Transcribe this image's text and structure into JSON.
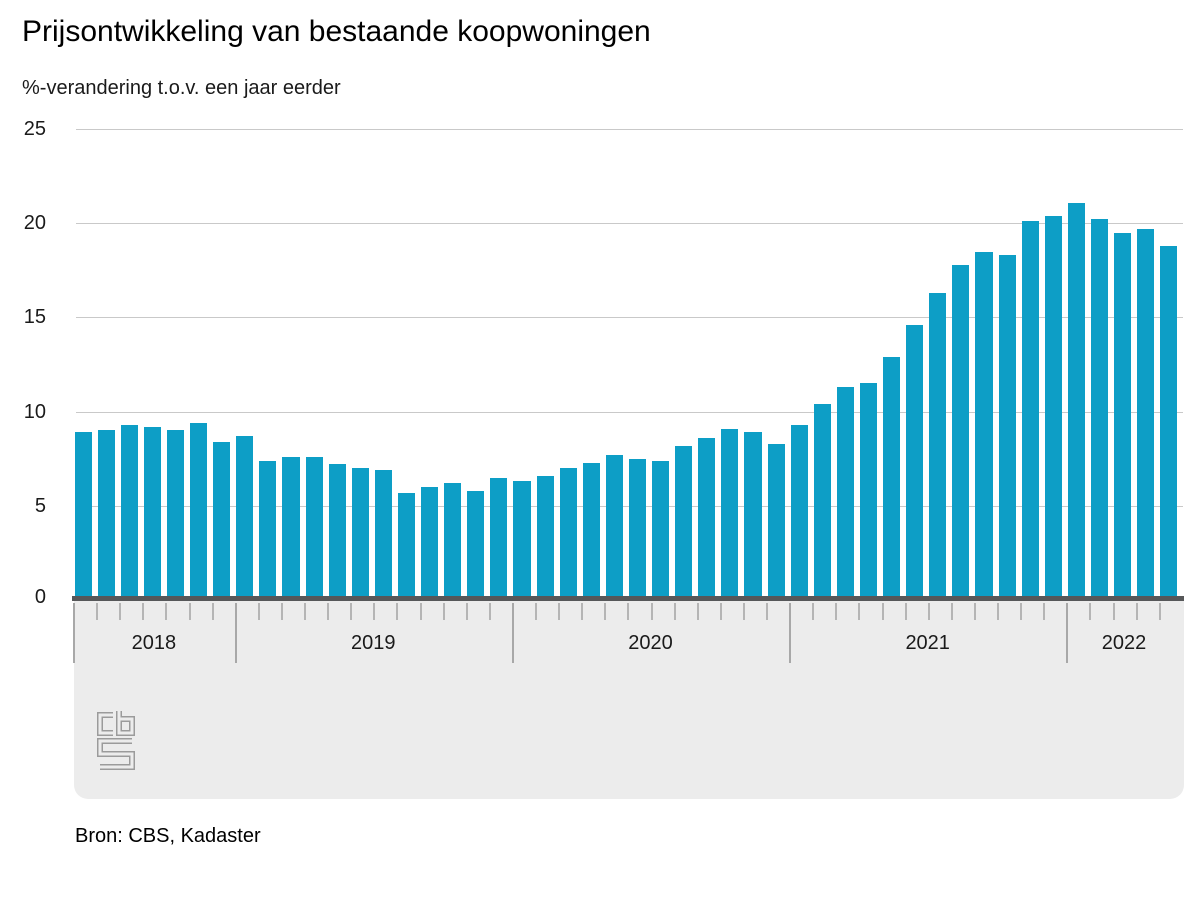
{
  "header": {
    "title": "Prijsontwikkeling van bestaande koopwoningen",
    "subtitle": "%-verandering t.o.v. een jaar eerder"
  },
  "chart_data": {
    "type": "bar",
    "title": "Prijsontwikkeling van bestaande koopwoningen",
    "subtitle": "%-verandering t.o.v. een jaar eerder",
    "xlabel": "",
    "ylabel": "%-verandering t.o.v. een jaar eerder",
    "ylim": [
      0,
      25
    ],
    "yticks": [
      0,
      5,
      10,
      15,
      20,
      25
    ],
    "grid": true,
    "legend": "none",
    "bar_color": "#0d9ec6",
    "categories": [
      "2018-06",
      "2018-07",
      "2018-08",
      "2018-09",
      "2018-10",
      "2018-11",
      "2018-12",
      "2019-01",
      "2019-02",
      "2019-03",
      "2019-04",
      "2019-05",
      "2019-06",
      "2019-07",
      "2019-08",
      "2019-09",
      "2019-10",
      "2019-11",
      "2019-12",
      "2020-01",
      "2020-02",
      "2020-03",
      "2020-04",
      "2020-05",
      "2020-06",
      "2020-07",
      "2020-08",
      "2020-09",
      "2020-10",
      "2020-11",
      "2020-12",
      "2021-01",
      "2021-02",
      "2021-03",
      "2021-04",
      "2021-05",
      "2021-06",
      "2021-07",
      "2021-08",
      "2021-09",
      "2021-10",
      "2021-11",
      "2021-12",
      "2022-01",
      "2022-02",
      "2022-03",
      "2022-04",
      "2022-05"
    ],
    "values": [
      8.9,
      9.0,
      9.3,
      9.2,
      9.0,
      9.4,
      8.4,
      8.7,
      7.4,
      7.6,
      7.6,
      7.2,
      7.0,
      6.9,
      5.7,
      6.0,
      6.2,
      5.8,
      6.5,
      6.3,
      6.6,
      7.0,
      7.3,
      7.7,
      7.5,
      7.4,
      8.2,
      8.6,
      9.1,
      8.9,
      8.3,
      9.3,
      10.4,
      11.3,
      11.5,
      12.9,
      14.6,
      16.3,
      17.8,
      18.5,
      18.3,
      20.1,
      20.4,
      21.1,
      20.2,
      19.5,
      19.7,
      18.8
    ],
    "years": [
      {
        "label": "2018",
        "start": 0,
        "count": 7
      },
      {
        "label": "2019",
        "start": 7,
        "count": 12
      },
      {
        "label": "2020",
        "start": 19,
        "count": 12
      },
      {
        "label": "2021",
        "start": 31,
        "count": 12
      },
      {
        "label": "2022",
        "start": 43,
        "count": 5
      }
    ]
  },
  "footer": {
    "source": "Bron: CBS, Kadaster"
  },
  "logo": {
    "name": "CBS",
    "outline_color": "#9b9b9b",
    "background_color": "#ececec"
  }
}
